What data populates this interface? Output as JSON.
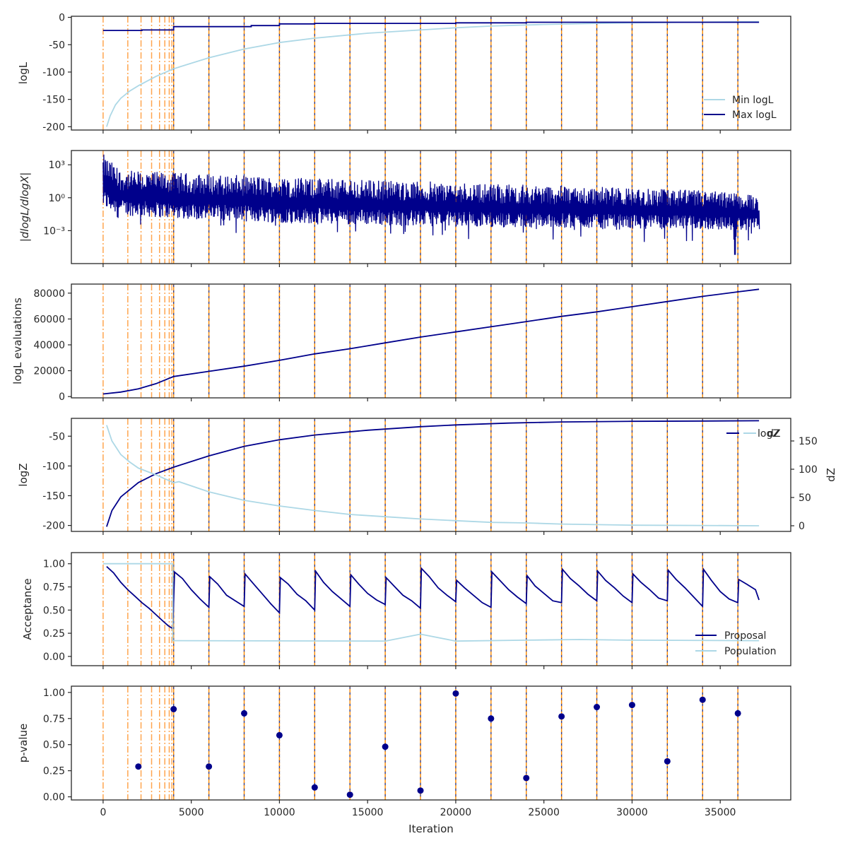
{
  "colors": {
    "dark": "#00008b",
    "light": "#add8e6",
    "insertion_line": "#ff8c00",
    "insertion_overlay": "#ffa54f",
    "axis": "#262626",
    "scatter": "#00008b"
  },
  "x_axis": {
    "label": "Iteration",
    "range": [
      -1800,
      39000
    ],
    "ticks": [
      0,
      5000,
      10000,
      15000,
      20000,
      25000,
      30000,
      35000
    ]
  },
  "insertion_markers": {
    "dashdot": [
      0,
      1400,
      2150,
      2750,
      3200,
      3500,
      3750,
      3900
    ],
    "dashed": [
      4000,
      6000,
      8000,
      10000,
      12000,
      14000,
      16000,
      18000,
      20000,
      22000,
      24000,
      26000,
      28000,
      30000,
      32000,
      34000,
      36000
    ]
  },
  "chart_data": [
    {
      "id": "logl",
      "type": "line",
      "ylabel": "logL",
      "ylim": [
        -206,
        2
      ],
      "yticks": [
        0,
        -50,
        -100,
        -150,
        -200
      ],
      "legend": {
        "placement": "lower-right",
        "entries": [
          "Min logL",
          "Max logL"
        ]
      },
      "series": [
        {
          "name": "Min logL",
          "color": "light",
          "x": [
            200,
            400,
            700,
            1000,
            1500,
            2000,
            3000,
            4000,
            6000,
            8000,
            10000,
            12000,
            15000,
            18000,
            20000,
            22000,
            25000,
            28000,
            30000,
            33000,
            37200
          ],
          "y": [
            -200,
            -180,
            -160,
            -148,
            -135,
            -125,
            -108,
            -94,
            -74,
            -58,
            -46,
            -38,
            -29,
            -23,
            -19,
            -16,
            -13,
            -11,
            -10,
            -9,
            -8
          ]
        },
        {
          "name": "Max logL",
          "color": "dark",
          "x": [
            0,
            2200,
            2200,
            4000,
            4000,
            8400,
            8400,
            10000,
            10000,
            12000,
            12000,
            20000,
            20000,
            24000,
            24000,
            37200
          ],
          "y": [
            -24,
            -24,
            -23,
            -23,
            -17,
            -17,
            -15,
            -15,
            -12,
            -12,
            -11,
            -11,
            -10,
            -10,
            -9,
            -9
          ]
        }
      ]
    },
    {
      "id": "dlogl",
      "type": "line",
      "ylabel": "|dlogL/dlogX|",
      "scale": "log",
      "ylim": [
        -6,
        4.3
      ],
      "yticks": [
        3,
        0,
        -3
      ],
      "ytick_labels": [
        "10³",
        "10⁰",
        "10⁻³"
      ],
      "series": [
        {
          "name": "|dlogL/dlogX|",
          "color": "dark",
          "note": "noisy band; x/y give envelope",
          "x": [
            0,
            1000,
            4000,
            10000,
            16000,
            22000,
            28000,
            34000,
            37200
          ],
          "upper_log10": [
            4.0,
            2.5,
            2.3,
            1.9,
            1.6,
            1.3,
            1.0,
            0.7,
            0.3
          ],
          "lower_log10": [
            -1.0,
            -1.6,
            -1.9,
            -2.3,
            -2.5,
            -2.7,
            -2.8,
            -2.9,
            -3.0
          ],
          "min_log10": -5.2,
          "min_x": 35800
        }
      ]
    },
    {
      "id": "evals",
      "type": "line",
      "ylabel": "logL evaluations",
      "ylim": [
        -1000,
        87000
      ],
      "yticks": [
        0,
        20000,
        40000,
        60000,
        80000
      ],
      "ytick_labels": [
        "0",
        "20000",
        "40000",
        "60000",
        "80000"
      ],
      "series": [
        {
          "name": "logL evaluations",
          "color": "dark",
          "x": [
            0,
            1000,
            2000,
            3000,
            4000,
            6000,
            8000,
            10000,
            12000,
            14000,
            16000,
            18000,
            20000,
            22000,
            24000,
            26000,
            28000,
            30000,
            32000,
            34000,
            36000,
            37200
          ],
          "y": [
            2000,
            3500,
            6000,
            10000,
            15500,
            19500,
            23500,
            28000,
            33000,
            37000,
            41500,
            46000,
            50000,
            54000,
            58000,
            62000,
            65500,
            69500,
            73500,
            77500,
            81000,
            83000
          ]
        }
      ]
    },
    {
      "id": "logz",
      "type": "line",
      "ylabel": "logZ",
      "ylabel_right": "dZ",
      "ylim": [
        -210,
        -20
      ],
      "yticks": [
        -50,
        -100,
        -150,
        -200
      ],
      "ylim_right": [
        -10,
        190
      ],
      "yticks_right": [
        0,
        50,
        100,
        150
      ],
      "legend": {
        "placement": "top-right",
        "entries": [
          "logZ",
          "dZ"
        ]
      },
      "series": [
        {
          "name": "logZ",
          "color": "dark",
          "x": [
            200,
            500,
            1000,
            2000,
            3000,
            4000,
            6000,
            8000,
            10000,
            12000,
            15000,
            18000,
            20000,
            23000,
            26000,
            30000,
            34000,
            37200
          ],
          "y": [
            -202,
            -175,
            -152,
            -128,
            -113,
            -102,
            -83,
            -67,
            -56,
            -48,
            -40,
            -34,
            -31,
            -28,
            -26,
            -25,
            -24.5,
            -24
          ]
        },
        {
          "name": "dZ",
          "axis": "right",
          "color": "light",
          "x": [
            200,
            500,
            1000,
            1500,
            2000,
            3000,
            3800,
            4000,
            4300,
            6000,
            8000,
            10000,
            12000,
            14000,
            16000,
            18000,
            20000,
            22000,
            24000,
            26000,
            28000,
            30000,
            34000,
            37200
          ],
          "y": [
            178,
            150,
            126,
            113,
            102,
            90,
            79,
            76,
            78,
            60,
            45,
            35,
            27,
            20,
            16,
            12,
            9,
            6,
            5,
            3,
            2,
            1,
            0.5,
            0
          ]
        }
      ]
    },
    {
      "id": "acceptance",
      "type": "line",
      "ylabel": "Acceptance",
      "ylim": [
        -0.1,
        1.12
      ],
      "yticks": [
        1.0,
        0.75,
        0.5,
        0.25,
        0.0
      ],
      "ytick_labels": [
        "1.00",
        "0.75",
        "0.50",
        "0.25",
        "0.00"
      ],
      "legend": {
        "placement": "lower-right",
        "entries": [
          "Proposal",
          "Population"
        ]
      },
      "series": [
        {
          "name": "Proposal",
          "color": "dark",
          "x": [
            200,
            600,
            1000,
            1400,
            1800,
            2200,
            2600,
            3000,
            3400,
            3700,
            3950,
            4050,
            4500,
            5000,
            5500,
            6000,
            6050,
            6500,
            7000,
            7500,
            8000,
            8050,
            8500,
            9000,
            9500,
            10000,
            10050,
            10500,
            11000,
            11500,
            12000,
            12050,
            12500,
            13000,
            13500,
            14000,
            14050,
            14500,
            15000,
            15500,
            16000,
            16050,
            16500,
            17000,
            17500,
            18000,
            18050,
            18500,
            19000,
            19500,
            20000,
            20050,
            20500,
            21000,
            21500,
            22000,
            22050,
            22500,
            23000,
            23500,
            24000,
            24050,
            24500,
            25000,
            25500,
            26000,
            26050,
            26500,
            27000,
            27500,
            28000,
            28050,
            28500,
            29000,
            29500,
            30000,
            30050,
            30500,
            31000,
            31500,
            32000,
            32050,
            32500,
            33000,
            33500,
            34000,
            34050,
            34500,
            35000,
            35500,
            36000,
            36050,
            36500,
            37000,
            37200
          ],
          "y": [
            0.97,
            0.9,
            0.8,
            0.72,
            0.65,
            0.58,
            0.52,
            0.45,
            0.38,
            0.33,
            0.3,
            0.91,
            0.84,
            0.72,
            0.62,
            0.53,
            0.86,
            0.78,
            0.66,
            0.6,
            0.54,
            0.89,
            0.79,
            0.68,
            0.57,
            0.47,
            0.85,
            0.78,
            0.67,
            0.6,
            0.5,
            0.92,
            0.8,
            0.7,
            0.62,
            0.54,
            0.88,
            0.78,
            0.68,
            0.61,
            0.56,
            0.85,
            0.76,
            0.66,
            0.6,
            0.52,
            0.95,
            0.86,
            0.74,
            0.66,
            0.59,
            0.82,
            0.74,
            0.66,
            0.58,
            0.53,
            0.91,
            0.82,
            0.72,
            0.64,
            0.57,
            0.87,
            0.76,
            0.68,
            0.6,
            0.58,
            0.94,
            0.84,
            0.76,
            0.67,
            0.6,
            0.92,
            0.82,
            0.74,
            0.65,
            0.58,
            0.89,
            0.8,
            0.72,
            0.63,
            0.6,
            0.93,
            0.83,
            0.74,
            0.64,
            0.54,
            0.94,
            0.82,
            0.7,
            0.62,
            0.58,
            0.83,
            0.78,
            0.72,
            0.61
          ]
        },
        {
          "name": "Population",
          "color": "light",
          "x": [
            0,
            3950,
            3950,
            4000,
            16000,
            18000,
            20000,
            24000,
            27000,
            30000,
            37200
          ],
          "y": [
            1.0,
            1.0,
            0.17,
            0.17,
            0.165,
            0.24,
            0.165,
            0.175,
            0.182,
            0.175,
            0.17
          ]
        }
      ]
    },
    {
      "id": "pvalue",
      "type": "scatter",
      "ylabel": "p-value",
      "ylim": [
        -0.03,
        1.06
      ],
      "yticks": [
        1.0,
        0.75,
        0.5,
        0.25,
        0.0
      ],
      "ytick_labels": [
        "1.00",
        "0.75",
        "0.50",
        "0.25",
        "0.00"
      ],
      "series": [
        {
          "name": "p-value",
          "color": "dark",
          "x": [
            2000,
            4000,
            6000,
            8000,
            10000,
            12000,
            14000,
            16000,
            18000,
            20000,
            22000,
            24000,
            26000,
            28000,
            30000,
            32000,
            34000,
            36000
          ],
          "y": [
            0.29,
            0.84,
            0.29,
            0.8,
            0.59,
            0.09,
            0.02,
            0.48,
            0.06,
            0.99,
            0.75,
            0.18,
            0.77,
            0.86,
            0.88,
            0.34,
            0.93,
            0.8
          ]
        }
      ]
    }
  ]
}
